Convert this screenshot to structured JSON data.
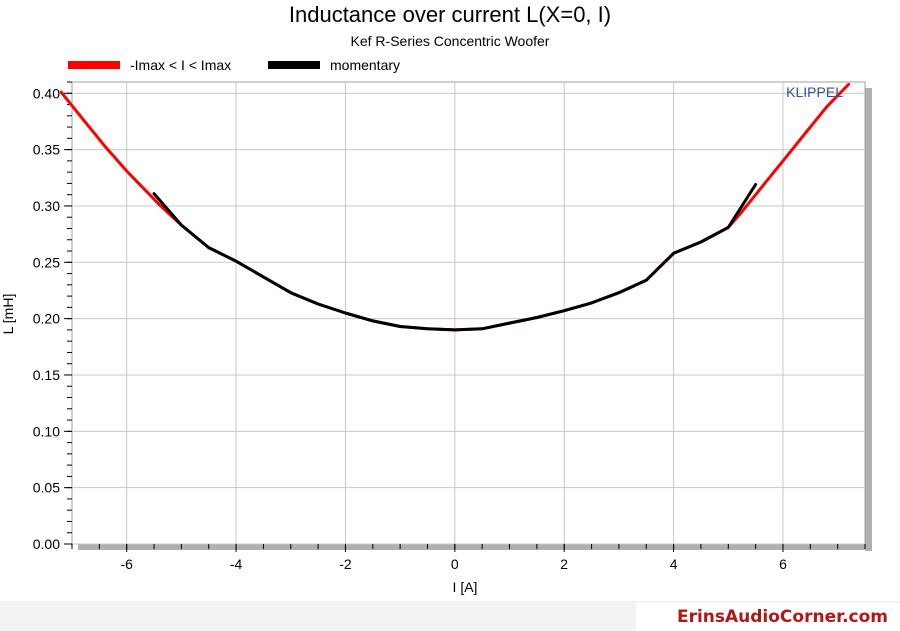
{
  "chart_data": {
    "type": "line",
    "title": "Inductance over current L(X=0, I)",
    "subtitle": "Kef R-Series Concentric Woofer",
    "xlabel": "I [A]",
    "ylabel": "L [mH]",
    "xlim": [
      -7.0,
      7.5
    ],
    "ylim": [
      0.0,
      0.41
    ],
    "x_ticks": [
      -6,
      -4,
      -2,
      0,
      2,
      4,
      6
    ],
    "x_tick_labels": [
      "-6",
      "-4",
      "-2",
      "0",
      "2",
      "4",
      "6"
    ],
    "y_ticks": [
      0.0,
      0.05,
      0.1,
      0.15,
      0.2,
      0.25,
      0.3,
      0.35,
      0.4
    ],
    "y_tick_labels": [
      "0.00",
      "0.05",
      "0.10",
      "0.15",
      "0.20",
      "0.25",
      "0.30",
      "0.35",
      "0.40"
    ],
    "grid": true,
    "legend_position": "top-left",
    "series": [
      {
        "name": "-Imax < I < Imax",
        "color": "#ff0000",
        "x": [
          -7.2,
          -7.0,
          -6.8,
          -6.6,
          -6.4,
          -6.2,
          -6.0,
          -5.8,
          -5.6,
          -5.4,
          -5.2,
          -5.0,
          -4.5,
          -4.0,
          -3.5,
          -3.0,
          -2.5,
          -2.0,
          -1.5,
          -1.0,
          -0.5,
          0.0,
          0.5,
          1.0,
          1.5,
          2.0,
          2.5,
          3.0,
          3.5,
          4.0,
          4.5,
          5.0,
          5.2,
          5.4,
          5.6,
          5.8,
          6.0,
          6.2,
          6.4,
          6.6,
          6.8,
          7.0,
          7.2
        ],
        "y": [
          0.401,
          0.389,
          0.377,
          0.365,
          0.353,
          0.342,
          0.331,
          0.321,
          0.311,
          0.301,
          0.292,
          0.283,
          0.263,
          0.251,
          0.237,
          0.223,
          0.213,
          0.205,
          0.198,
          0.193,
          0.191,
          0.19,
          0.191,
          0.196,
          0.201,
          0.207,
          0.214,
          0.223,
          0.234,
          0.258,
          0.268,
          0.281,
          0.292,
          0.304,
          0.316,
          0.328,
          0.34,
          0.352,
          0.364,
          0.376,
          0.388,
          0.398,
          0.408
        ]
      },
      {
        "name": "momentary",
        "color": "#000000",
        "x": [
          -5.5,
          -5.0,
          -4.5,
          -4.0,
          -3.5,
          -3.0,
          -2.5,
          -2.0,
          -1.5,
          -1.0,
          -0.5,
          0.0,
          0.5,
          1.0,
          1.5,
          2.0,
          2.5,
          3.0,
          3.5,
          4.0,
          4.5,
          5.0,
          5.5
        ],
        "y": [
          0.311,
          0.283,
          0.263,
          0.251,
          0.237,
          0.223,
          0.213,
          0.205,
          0.198,
          0.193,
          0.191,
          0.19,
          0.191,
          0.196,
          0.201,
          0.207,
          0.214,
          0.223,
          0.234,
          0.258,
          0.268,
          0.281,
          0.319
        ]
      }
    ],
    "annotations": [
      "KLIPPEL"
    ]
  },
  "footer": {
    "brand": "ErinsAudioCorner.com"
  }
}
